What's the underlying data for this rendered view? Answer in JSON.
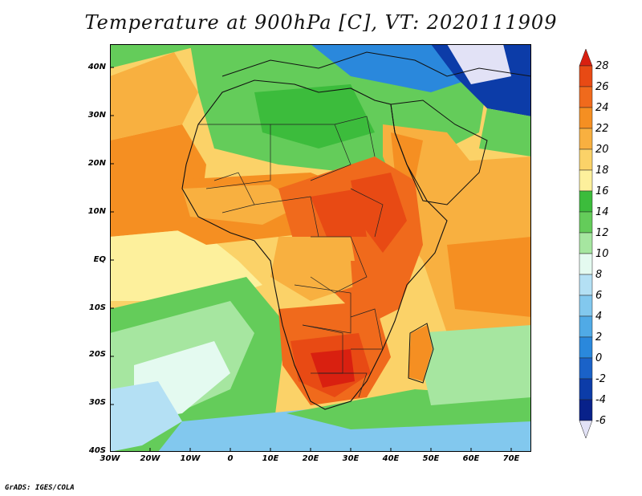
{
  "title": "Temperature at 900hPa [C], VT: 2020111909",
  "credit": "GrADS: IGES/COLA",
  "lat_labels": [
    "40N",
    "30N",
    "20N",
    "10N",
    "EQ",
    "10S",
    "20S",
    "30S",
    "40S"
  ],
  "lon_labels": [
    "30W",
    "20W",
    "10W",
    "0",
    "10E",
    "20E",
    "30E",
    "40E",
    "50E",
    "60E",
    "70E"
  ],
  "colorbar": {
    "labels": [
      "28",
      "26",
      "24",
      "22",
      "20",
      "18",
      "16",
      "14",
      "12",
      "10",
      "8",
      "6",
      "4",
      "2",
      "0",
      "-2",
      "-4",
      "-6"
    ],
    "colors": {
      "above_28": "#d92010",
      "26_28": "#e84a14",
      "24_26": "#f06a1c",
      "22_24": "#f58f22",
      "20_22": "#f8b040",
      "18_20": "#fbd268",
      "16_18": "#fdf09c",
      "14_16": "#3cbc3c",
      "12_14": "#64cc5a",
      "10_12": "#a6e6a0",
      "8_10": "#e4faf0",
      "6_8": "#b4e0f4",
      "4_6": "#82c8ee",
      "2_4": "#50aae6",
      "0_2": "#2a88dc",
      "m2_0": "#1a62c8",
      "m4_m2": "#0c3ca8",
      "m6_m4": "#08218a",
      "below_m6": "#e2e2f6"
    }
  }
}
